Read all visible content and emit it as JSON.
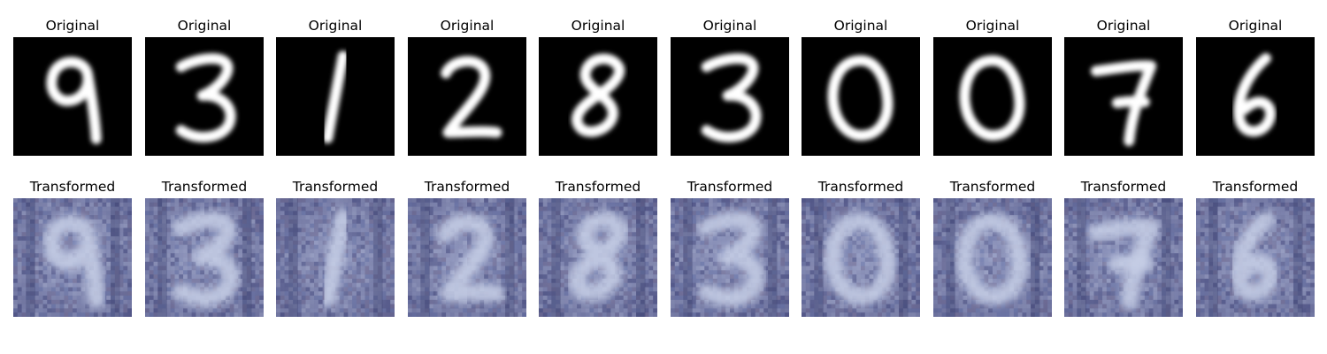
{
  "rows": [
    {
      "label": "Original",
      "style": "mnist",
      "colors": {
        "background": "#000000",
        "stroke": "#ffffff"
      },
      "cells": [
        {
          "digit": "9",
          "glyph": "nine-digit"
        },
        {
          "digit": "3",
          "glyph": "three-digit"
        },
        {
          "digit": "1",
          "glyph": "one-digit"
        },
        {
          "digit": "2",
          "glyph": "two-digit"
        },
        {
          "digit": "8",
          "glyph": "eight-digit"
        },
        {
          "digit": "3",
          "glyph": "three-digit"
        },
        {
          "digit": "0",
          "glyph": "zero-digit"
        },
        {
          "digit": "0",
          "glyph": "zero-digit"
        },
        {
          "digit": "7",
          "glyph": "seven-digit"
        },
        {
          "digit": "6",
          "glyph": "six-digit"
        }
      ]
    },
    {
      "label": "Transformed",
      "style": "svhn",
      "colors": {
        "background": "#5b5f8e",
        "stroke": "#c7cfe6",
        "noise": "#9aa3c8"
      },
      "cells": [
        {
          "digit": "9",
          "glyph": "nine-digit"
        },
        {
          "digit": "3",
          "glyph": "three-digit"
        },
        {
          "digit": "1",
          "glyph": "one-digit"
        },
        {
          "digit": "2",
          "glyph": "two-digit"
        },
        {
          "digit": "8",
          "glyph": "eight-digit"
        },
        {
          "digit": "3",
          "glyph": "three-digit"
        },
        {
          "digit": "0",
          "glyph": "zero-digit"
        },
        {
          "digit": "0",
          "glyph": "zero-digit"
        },
        {
          "digit": "7",
          "glyph": "seven-digit"
        },
        {
          "digit": "6",
          "glyph": "six-digit"
        }
      ]
    }
  ]
}
